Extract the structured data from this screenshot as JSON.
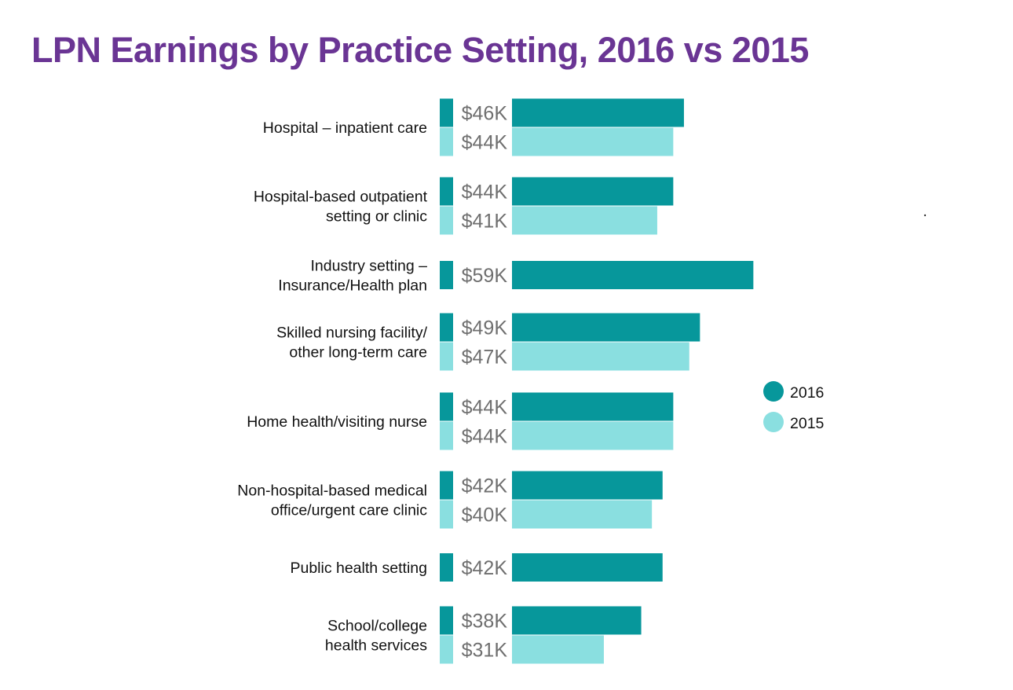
{
  "colors": {
    "title": "#6a3594",
    "series_2016": "#07979b",
    "series_2015": "#8adfe0"
  },
  "chart_data": {
    "type": "bar",
    "orientation": "horizontal",
    "title": "LPN Earnings by Practice Setting, 2016 vs 2015",
    "value_format": "${v}K",
    "legend_position": "right",
    "grid": false,
    "categories": [
      [
        "Hospital – inpatient care"
      ],
      [
        "Hospital-based outpatient",
        "setting or clinic"
      ],
      [
        "Industry setting –",
        "Insurance/Health plan"
      ],
      [
        "Skilled nursing facility/",
        "other long-term care"
      ],
      [
        "Home health/visiting nurse"
      ],
      [
        "Non-hospital-based medical",
        "office/urgent care clinic"
      ],
      [
        "Public health setting"
      ],
      [
        "School/college",
        "health services"
      ]
    ],
    "series": [
      {
        "name": "2016",
        "values": [
          46,
          44,
          59,
          49,
          44,
          42,
          42,
          38
        ]
      },
      {
        "name": "2015",
        "values": [
          44,
          41,
          null,
          47,
          44,
          40,
          null,
          31
        ]
      }
    ]
  }
}
